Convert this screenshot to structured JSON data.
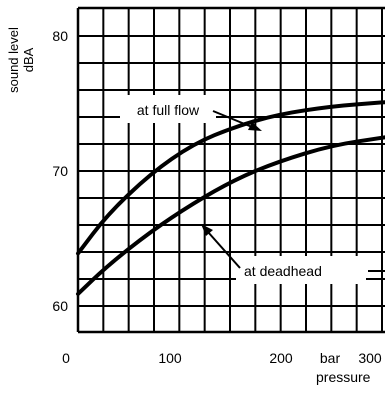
{
  "chart_data": {
    "type": "line",
    "ylabel_line1": "sound level",
    "ylabel_line2": "dBA",
    "x_unit": "bar",
    "xlabel": "pressure",
    "xlim": [
      0,
      300
    ],
    "ylim": [
      60,
      80
    ],
    "grid": true,
    "x_ticks": [
      {
        "value": 0,
        "label": "0"
      },
      {
        "value": 100,
        "label": "100"
      },
      {
        "value": 200,
        "label": "200"
      },
      {
        "value": 300,
        "label": "300"
      }
    ],
    "y_ticks": [
      {
        "value": 60,
        "label": "60"
      },
      {
        "value": 70,
        "label": "70"
      },
      {
        "value": 80,
        "label": "80"
      }
    ],
    "series": [
      {
        "name": "at full flow",
        "points": [
          [
            12,
            63.9
          ],
          [
            40,
            66.8
          ],
          [
            80,
            69.8
          ],
          [
            120,
            72.0
          ],
          [
            160,
            73.3
          ],
          [
            200,
            74.2
          ],
          [
            250,
            74.8
          ],
          [
            300,
            75.1
          ]
        ]
      },
      {
        "name": "at deadhead",
        "points": [
          [
            12,
            60.9
          ],
          [
            40,
            63.0
          ],
          [
            80,
            65.5
          ],
          [
            120,
            67.6
          ],
          [
            160,
            69.4
          ],
          [
            200,
            70.7
          ],
          [
            250,
            71.9
          ],
          [
            300,
            72.5
          ]
        ]
      }
    ]
  }
}
